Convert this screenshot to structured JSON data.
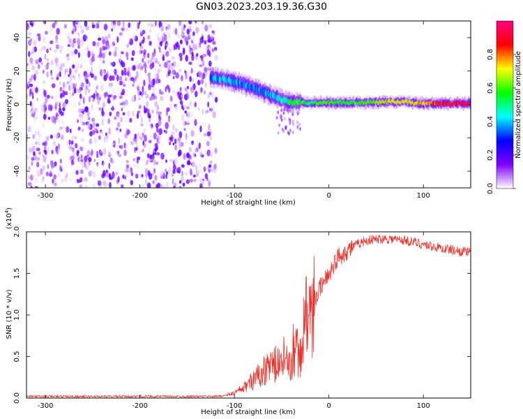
{
  "title": "GN03.2023.203.19.36.G30",
  "colors": {
    "snr_line": "#e8302a",
    "axes": "#000000",
    "background": "#ffffff"
  },
  "colorbar": {
    "label": "Normalized spectral amplitude",
    "range": [
      0,
      1
    ],
    "ticks": [
      "0.0",
      "0.2",
      "0.4",
      "0.6",
      "0.8"
    ],
    "tick_values": [
      0.0,
      0.2,
      0.4,
      0.6,
      0.8
    ],
    "colormap": [
      "#ffffff",
      "#8000ff",
      "#0000ff",
      "#00ffff",
      "#00ff00",
      "#ffff00",
      "#ff0000",
      "#ff0080"
    ]
  },
  "chart_data": [
    {
      "type": "heatmap",
      "name": "spectrogram",
      "xlabel": "Height of straight line (km)",
      "ylabel": "Frequency (Hz)",
      "xlim": [
        -320,
        150
      ],
      "ylim": [
        -50,
        50
      ],
      "xticks": [
        -300,
        -200,
        -100,
        0,
        100
      ],
      "xtick_labels": [
        "-300",
        "-200",
        "-100",
        "0",
        "100"
      ],
      "yticks": [
        -40,
        -20,
        0,
        20,
        40
      ],
      "ytick_labels": [
        "-40",
        "-20",
        "0",
        "20",
        "40"
      ],
      "noise_region_x": [
        -320,
        -125
      ],
      "ridge": {
        "x": [
          -125,
          -110,
          -90,
          -75,
          -60,
          -50,
          -40,
          -30,
          -20,
          -10,
          0,
          20,
          40,
          60,
          80,
          100,
          120,
          150
        ],
        "freq": [
          16,
          15,
          12,
          9,
          5,
          3,
          1,
          1.5,
          1,
          1,
          1,
          1,
          1,
          1.5,
          1.5,
          0.5,
          0.5,
          0.5
        ],
        "amplitude": [
          0.35,
          0.4,
          0.35,
          0.35,
          0.4,
          0.45,
          0.55,
          0.6,
          0.5,
          0.55,
          0.6,
          0.55,
          0.6,
          0.7,
          0.7,
          0.75,
          0.85,
          0.9
        ]
      }
    },
    {
      "type": "line",
      "name": "snr",
      "xlabel": "Height of straight line (km)",
      "ylabel": "SNR (10 * v/v)",
      "y_scale_label": "(x10",
      "y_scale_exp": "4",
      "y_scale_close": ")",
      "xlim": [
        -320,
        150
      ],
      "ylim": [
        0,
        2.0
      ],
      "xticks": [
        -300,
        -200,
        -100,
        0,
        100
      ],
      "xtick_labels": [
        "-300",
        "-200",
        "-100",
        "0",
        "100"
      ],
      "yticks": [
        0,
        0.5,
        1.0,
        1.5,
        2.0
      ],
      "ytick_labels": [
        "0.0",
        "0.5",
        "1.0",
        "1.5",
        "2.0"
      ],
      "x": [
        -320,
        -250,
        -150,
        -120,
        -110,
        -100,
        -90,
        -80,
        -70,
        -60,
        -50,
        -40,
        -35,
        -30,
        -25,
        -20,
        -15,
        -10,
        -5,
        0,
        10,
        20,
        30,
        40,
        60,
        80,
        100,
        120,
        150
      ],
      "y": [
        0.02,
        0.02,
        0.02,
        0.02,
        0.03,
        0.06,
        0.12,
        0.22,
        0.32,
        0.4,
        0.42,
        0.4,
        0.6,
        0.45,
        1.0,
        0.9,
        1.2,
        1.3,
        1.4,
        1.5,
        1.7,
        1.78,
        1.85,
        1.9,
        1.92,
        1.9,
        1.85,
        1.8,
        1.75
      ]
    }
  ]
}
